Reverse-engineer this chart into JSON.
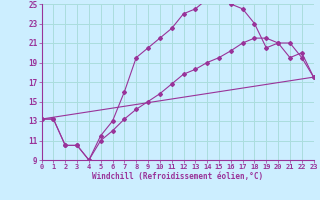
{
  "xlabel": "Windchill (Refroidissement éolien,°C)",
  "bg_color": "#cceeff",
  "grid_color": "#aadddd",
  "line_color": "#993399",
  "line1_x": [
    0,
    1,
    2,
    3,
    4,
    5,
    6,
    7,
    8,
    9,
    10,
    11,
    12,
    13,
    14,
    15,
    16,
    17,
    18,
    19,
    20,
    21,
    22,
    23
  ],
  "line1_y": [
    13.2,
    13.2,
    10.5,
    10.5,
    9.0,
    11.5,
    13.0,
    16.0,
    19.5,
    20.5,
    21.5,
    22.5,
    24.0,
    24.5,
    25.5,
    25.5,
    25.0,
    24.5,
    23.0,
    20.5,
    21.0,
    19.5,
    20.0,
    17.5
  ],
  "line2_x": [
    0,
    1,
    2,
    3,
    4,
    5,
    6,
    7,
    8,
    9,
    10,
    11,
    12,
    13,
    14,
    15,
    16,
    17,
    18,
    19,
    20,
    21,
    22,
    23
  ],
  "line2_y": [
    13.2,
    13.2,
    10.5,
    10.5,
    9.0,
    11.0,
    12.0,
    13.2,
    14.2,
    15.0,
    15.8,
    16.8,
    17.8,
    18.3,
    19.0,
    19.5,
    20.2,
    21.0,
    21.5,
    21.5,
    21.0,
    21.0,
    19.5,
    17.5
  ],
  "line3_x": [
    0,
    23
  ],
  "line3_y": [
    13.2,
    17.5
  ],
  "xmin": 0,
  "xmax": 23,
  "ymin": 9,
  "ymax": 25,
  "yticks": [
    9,
    11,
    13,
    15,
    17,
    19,
    21,
    23,
    25
  ],
  "xticks": [
    0,
    1,
    2,
    3,
    4,
    5,
    6,
    7,
    8,
    9,
    10,
    11,
    12,
    13,
    14,
    15,
    16,
    17,
    18,
    19,
    20,
    21,
    22,
    23
  ]
}
